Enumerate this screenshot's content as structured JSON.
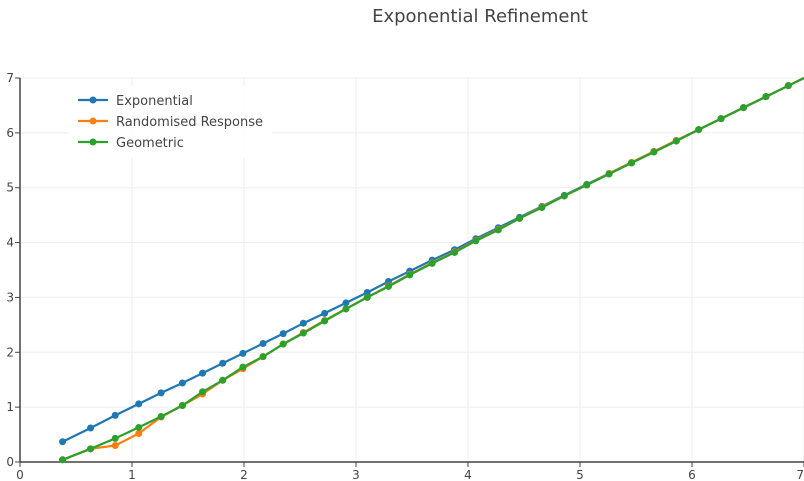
{
  "chart_data": {
    "type": "line",
    "title": "Exponential Refinement",
    "xlabel": "",
    "ylabel": "",
    "xlim": [
      0,
      7
    ],
    "ylim": [
      0,
      7
    ],
    "xticks": [
      0,
      1,
      2,
      3,
      4,
      5,
      6,
      7
    ],
    "yticks": [
      0,
      1,
      2,
      3,
      4,
      5,
      6,
      7
    ],
    "grid": true,
    "legend_position": "top-left",
    "series": [
      {
        "name": "Exponential",
        "color": "#1f77b4",
        "x": [
          0.38,
          0.63,
          0.85,
          1.06,
          1.26,
          1.45,
          1.63,
          1.81,
          1.99,
          2.17,
          2.35,
          2.53,
          2.72,
          2.91,
          3.1,
          3.29,
          3.48,
          3.68,
          3.88,
          4.07,
          4.27,
          4.46,
          4.66,
          4.86,
          5.06,
          5.26,
          5.46,
          5.66,
          5.86,
          6.06,
          6.26,
          6.46,
          6.66,
          6.86
        ],
        "y": [
          0.37,
          0.62,
          0.85,
          1.06,
          1.26,
          1.44,
          1.62,
          1.8,
          1.98,
          2.16,
          2.34,
          2.53,
          2.71,
          2.9,
          3.09,
          3.29,
          3.48,
          3.68,
          3.87,
          4.07,
          4.27,
          4.46,
          4.66,
          4.86,
          5.06,
          5.26,
          5.46,
          5.66,
          5.86,
          6.06,
          6.26,
          6.46,
          6.66,
          6.86
        ]
      },
      {
        "name": "Randomised Response",
        "color": "#ff7f0e",
        "x": [
          0.38,
          0.63,
          0.85,
          1.06,
          1.26,
          1.45,
          1.63,
          1.81,
          1.99,
          2.17,
          2.35,
          2.53,
          2.72,
          2.91,
          3.1,
          3.29,
          3.48,
          3.68,
          3.88,
          4.07,
          4.27,
          4.46,
          4.66,
          4.86,
          5.06,
          5.26,
          5.46,
          5.66,
          5.86,
          6.06,
          6.26,
          6.46,
          6.66,
          6.86
        ],
        "y": [
          0.04,
          0.24,
          0.3,
          0.52,
          0.82,
          1.03,
          1.24,
          1.49,
          1.7,
          1.92,
          2.15,
          2.36,
          2.58,
          2.79,
          3.0,
          3.21,
          3.42,
          3.63,
          3.83,
          4.04,
          4.24,
          4.44,
          4.65,
          4.85,
          5.05,
          5.26,
          5.46,
          5.66,
          5.86,
          6.06,
          6.26,
          6.46,
          6.66,
          6.86
        ]
      },
      {
        "name": "Geometric",
        "color": "#2ca02c",
        "x": [
          0.38,
          0.63,
          0.85,
          1.06,
          1.26,
          1.45,
          1.63,
          1.81,
          1.99,
          2.17,
          2.35,
          2.53,
          2.72,
          2.91,
          3.1,
          3.29,
          3.48,
          3.68,
          3.88,
          4.07,
          4.27,
          4.46,
          4.66,
          4.86,
          5.06,
          5.26,
          5.46,
          5.66,
          5.86,
          6.06,
          6.26,
          6.46,
          6.66,
          6.86
        ],
        "y": [
          0.04,
          0.24,
          0.43,
          0.63,
          0.83,
          1.03,
          1.28,
          1.49,
          1.73,
          1.92,
          2.15,
          2.35,
          2.57,
          2.79,
          3.0,
          3.2,
          3.41,
          3.62,
          3.82,
          4.03,
          4.23,
          4.44,
          4.64,
          4.85,
          5.05,
          5.25,
          5.45,
          5.65,
          5.85,
          6.06,
          6.26,
          6.46,
          6.66,
          6.86
        ]
      }
    ]
  }
}
